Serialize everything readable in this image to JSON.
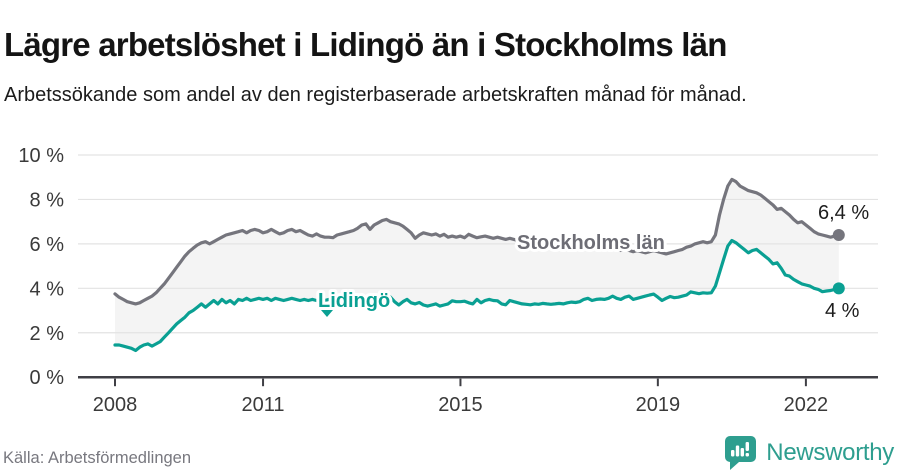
{
  "header": {
    "title": "Lägre arbetslöshet i Lidingö än i Stockholms län",
    "subtitle": "Arbetssökande som andel av den registerbaserade arbetskraften månad för månad."
  },
  "footer": {
    "source": "Källa: Arbetsförmedlingen",
    "brand_name": "Newsworthy",
    "brand_icon": "newsworthy-speech-bubble-bar-chart-icon",
    "brand_color": "#2e9e8f"
  },
  "chart_data": {
    "type": "line",
    "frequency": "monthly",
    "x_start": "2008-01",
    "x_end": "2022-09",
    "grid": "horizontal",
    "legend_position": "inline-labels-on-lines",
    "band_fill_between_series": true,
    "ylim": [
      0,
      10
    ],
    "y_ticks": [
      {
        "value": 0,
        "label": "0 %"
      },
      {
        "value": 2,
        "label": "2 %"
      },
      {
        "value": 4,
        "label": "4 %"
      },
      {
        "value": 6,
        "label": "6 %"
      },
      {
        "value": 8,
        "label": "8 %"
      },
      {
        "value": 10,
        "label": "10 %"
      }
    ],
    "x_ticks": [
      {
        "year": 2008,
        "label": "2008"
      },
      {
        "year": 2011,
        "label": "2011"
      },
      {
        "year": 2015,
        "label": "2015"
      },
      {
        "year": 2019,
        "label": "2019"
      },
      {
        "year": 2022,
        "label": "2022"
      }
    ],
    "style": {
      "band_fill": "#f4f4f4",
      "gridline_color": "#e3e3e3",
      "axis_color": "#3f3f45",
      "tick_text_color": "#3a3a3a",
      "end_label_color": "#1d1d1d"
    },
    "series": [
      {
        "name": "Stockholms län",
        "color": "#75757d",
        "label_color": "#6d6d75",
        "end_label": "6,4 %",
        "last_value": 6.4,
        "values": [
          3.75,
          3.6,
          3.5,
          3.4,
          3.35,
          3.3,
          3.35,
          3.45,
          3.55,
          3.65,
          3.8,
          4.0,
          4.2,
          4.45,
          4.7,
          4.95,
          5.2,
          5.45,
          5.65,
          5.8,
          5.95,
          6.05,
          6.1,
          6.0,
          6.1,
          6.2,
          6.3,
          6.4,
          6.45,
          6.5,
          6.55,
          6.6,
          6.5,
          6.6,
          6.65,
          6.6,
          6.5,
          6.55,
          6.65,
          6.55,
          6.45,
          6.5,
          6.6,
          6.65,
          6.55,
          6.6,
          6.5,
          6.4,
          6.35,
          6.45,
          6.35,
          6.3,
          6.3,
          6.28,
          6.4,
          6.45,
          6.5,
          6.55,
          6.6,
          6.7,
          6.85,
          6.9,
          6.65,
          6.85,
          6.95,
          7.05,
          7.1,
          7.0,
          6.95,
          6.9,
          6.8,
          6.65,
          6.5,
          6.25,
          6.4,
          6.5,
          6.45,
          6.4,
          6.45,
          6.35,
          6.43,
          6.3,
          6.35,
          6.3,
          6.35,
          6.28,
          6.43,
          6.35,
          6.28,
          6.32,
          6.35,
          6.3,
          6.25,
          6.3,
          6.25,
          6.2,
          6.25,
          6.2,
          6.15,
          6.2,
          6.15,
          6.1,
          6.15,
          6.1,
          6.05,
          6.1,
          6.05,
          6.0,
          6.05,
          6.0,
          5.95,
          6.0,
          5.95,
          5.9,
          5.95,
          5.9,
          5.85,
          5.9,
          5.85,
          5.8,
          5.85,
          5.8,
          5.75,
          5.7,
          5.75,
          5.7,
          5.65,
          5.7,
          5.65,
          5.6,
          5.65,
          5.7,
          5.65,
          5.6,
          5.55,
          5.6,
          5.65,
          5.7,
          5.75,
          5.85,
          5.9,
          6.0,
          6.05,
          6.1,
          6.05,
          6.1,
          6.4,
          7.3,
          8.0,
          8.6,
          8.9,
          8.8,
          8.6,
          8.5,
          8.4,
          8.35,
          8.3,
          8.2,
          8.05,
          7.9,
          7.75,
          7.55,
          7.6,
          7.45,
          7.3,
          7.1,
          6.95,
          7.0,
          6.85,
          6.7,
          6.55,
          6.45,
          6.4,
          6.35,
          6.3,
          6.35,
          6.4
        ]
      },
      {
        "name": "Lidingö",
        "color": "#0aa093",
        "label_color": "#0aa093",
        "end_label": "4 %",
        "last_value": 4.0,
        "values": [
          1.45,
          1.45,
          1.4,
          1.35,
          1.3,
          1.2,
          1.35,
          1.45,
          1.5,
          1.4,
          1.5,
          1.6,
          1.8,
          2.0,
          2.2,
          2.4,
          2.55,
          2.7,
          2.9,
          3.0,
          3.15,
          3.3,
          3.15,
          3.3,
          3.45,
          3.3,
          3.5,
          3.35,
          3.45,
          3.3,
          3.5,
          3.45,
          3.55,
          3.45,
          3.5,
          3.55,
          3.5,
          3.55,
          3.45,
          3.55,
          3.5,
          3.45,
          3.5,
          3.55,
          3.5,
          3.45,
          3.5,
          3.45,
          3.5,
          3.45,
          3.4,
          3.45,
          3.5,
          3.45,
          3.5,
          3.45,
          3.5,
          3.55,
          3.5,
          3.45,
          3.5,
          3.55,
          3.6,
          3.65,
          3.7,
          3.75,
          3.7,
          3.6,
          3.4,
          3.25,
          3.4,
          3.5,
          3.35,
          3.3,
          3.36,
          3.25,
          3.2,
          3.25,
          3.3,
          3.2,
          3.25,
          3.3,
          3.44,
          3.4,
          3.4,
          3.42,
          3.35,
          3.3,
          3.5,
          3.35,
          3.45,
          3.5,
          3.45,
          3.44,
          3.3,
          3.26,
          3.45,
          3.4,
          3.35,
          3.3,
          3.28,
          3.26,
          3.3,
          3.28,
          3.32,
          3.3,
          3.28,
          3.3,
          3.32,
          3.3,
          3.35,
          3.38,
          3.36,
          3.4,
          3.5,
          3.55,
          3.45,
          3.5,
          3.52,
          3.5,
          3.55,
          3.65,
          3.55,
          3.5,
          3.6,
          3.65,
          3.5,
          3.55,
          3.6,
          3.65,
          3.7,
          3.74,
          3.6,
          3.45,
          3.55,
          3.63,
          3.58,
          3.6,
          3.65,
          3.7,
          3.84,
          3.8,
          3.76,
          3.8,
          3.78,
          3.8,
          4.1,
          4.7,
          5.3,
          5.9,
          6.15,
          6.05,
          5.9,
          5.75,
          5.6,
          5.7,
          5.75,
          5.6,
          5.45,
          5.3,
          5.1,
          5.15,
          4.9,
          4.6,
          4.55,
          4.4,
          4.3,
          4.2,
          4.15,
          4.1,
          4.0,
          3.95,
          3.85,
          3.88,
          3.9,
          3.95,
          4.0
        ]
      }
    ]
  }
}
